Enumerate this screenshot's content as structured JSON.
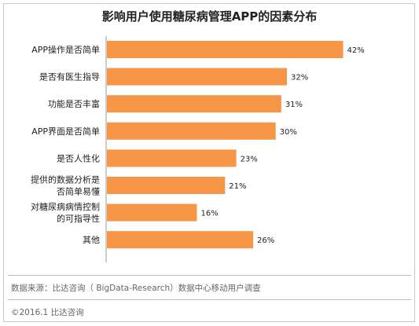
{
  "chart_data": {
    "type": "bar",
    "orientation": "horizontal",
    "title": "影响用户使用糖尿病管理APP的因素分布",
    "categories": [
      "APP操作是否简单",
      "是否有医生指导",
      "功能是否丰富",
      "APP界面是否简单",
      "是否人性化",
      "提供的数据分析是\n否简单易懂",
      "对糖尿病病情控制\n的可指导性",
      "其他"
    ],
    "values": [
      42,
      32,
      31,
      30,
      23,
      21,
      16,
      26
    ],
    "value_labels": [
      "42%",
      "32%",
      "31%",
      "30%",
      "23%",
      "21%",
      "16%",
      "26%"
    ],
    "unit": "%",
    "xlim": [
      0,
      45
    ],
    "grid": false,
    "color": "#f79646"
  },
  "footer": {
    "source": "数据来源：比达咨询（ BigData-Research）数据中心移动用户调查",
    "copyright": "©2016.1  比达咨询"
  }
}
